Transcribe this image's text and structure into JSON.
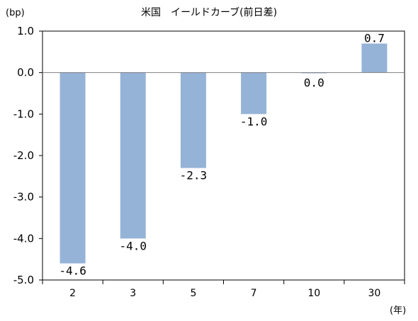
{
  "chart_data": {
    "type": "bar",
    "title": "米国　イールドカーブ(前日差)",
    "ylabel": "(bp)",
    "xlabel": "(年)",
    "categories": [
      "2",
      "3",
      "5",
      "7",
      "10",
      "30"
    ],
    "values": [
      -4.6,
      -4.0,
      -2.3,
      -1.0,
      0.0,
      0.7
    ],
    "data_labels": [
      "-4.6",
      "-4.0",
      "-2.3",
      "-1.0",
      "0.0",
      "0.7"
    ],
    "y_ticks": [
      1.0,
      0.0,
      -1.0,
      -2.0,
      -3.0,
      -4.0,
      -5.0
    ],
    "y_tick_labels": [
      "1.0",
      "0.0",
      "-1.0",
      "-2.0",
      "-3.0",
      "-4.0",
      "-5.0"
    ],
    "ylim": [
      -5.0,
      1.0
    ],
    "grid": false,
    "legend": "none",
    "bar_color": "#95b3d7"
  }
}
